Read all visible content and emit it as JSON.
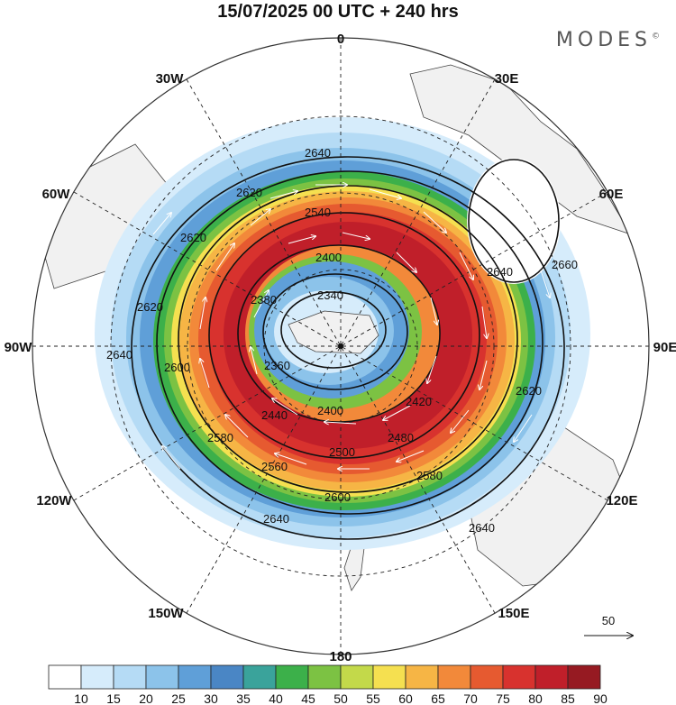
{
  "title": "15/07/2025  00 UTC  + 240 hrs",
  "brand": "MODES",
  "brand_mark": "©",
  "longitude_labels": {
    "lon_0": "0",
    "lon_30e": "30E",
    "lon_60e": "60E",
    "lon_90e": "90E",
    "lon_120e": "120E",
    "lon_150e": "150E",
    "lon_180": "180",
    "lon_150w": "150W",
    "lon_120w": "120W",
    "lon_90w": "90W",
    "lon_60w": "60W",
    "lon_30w": "30W"
  },
  "contours": {
    "c2340": "2340",
    "c2360": "2360",
    "c2380": "2380",
    "c2400": "2400",
    "c2400b": "2400",
    "c2420": "2420",
    "c2440": "2440",
    "c2480": "2480",
    "c2500": "2500",
    "c2540": "2540",
    "c2560": "2560",
    "c2580": "2580",
    "c2580b": "2580",
    "c2600": "2600",
    "c2600b": "2600",
    "c2620": "2620",
    "c2620b": "2620",
    "c2620c": "2620",
    "c2620d": "2620",
    "c2640": "2640",
    "c2640b": "2640",
    "c2640c": "2640",
    "c2640d": "2640",
    "c2640e": "2640",
    "c2660": "2660"
  },
  "vector_scale_label": "50",
  "colorbar": {
    "labels": [
      "10",
      "15",
      "20",
      "25",
      "30",
      "35",
      "40",
      "45",
      "50",
      "55",
      "60",
      "65",
      "70",
      "75",
      "80",
      "85",
      "90"
    ],
    "colors": [
      "#ffffff",
      "#d6ecfb",
      "#b5dbf5",
      "#8cc3ea",
      "#5f9fd8",
      "#4a86c5",
      "#3aa39b",
      "#3cb04a",
      "#7cc243",
      "#c3d94a",
      "#f5e050",
      "#f6b545",
      "#f2893a",
      "#e65a30",
      "#d8322e",
      "#c01f2a",
      "#961a22"
    ]
  }
}
